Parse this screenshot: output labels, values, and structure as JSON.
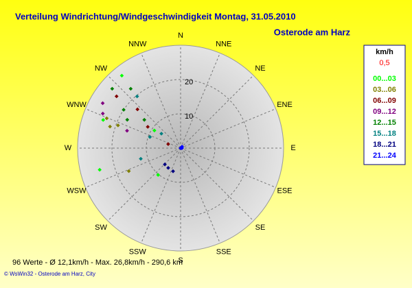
{
  "chart_data": {
    "type": "polar-scatter",
    "title": "Verteilung Windrichtung/Windgeschwindigkeit  Montag, 31.05.2010",
    "subtitle": "Osterode am Harz",
    "directions": [
      "N",
      "NNE",
      "NE",
      "ENE",
      "E",
      "ESE",
      "SE",
      "SSE",
      "S",
      "SSW",
      "SW",
      "WSW",
      "W",
      "WNW",
      "NW",
      "NNW"
    ],
    "rlim": [
      0,
      30
    ],
    "rticks": [
      10,
      20
    ],
    "grid": true,
    "legend_title": "km/h",
    "calm_label": "0,5",
    "calm_color": "#ff0000",
    "series": [
      {
        "name": "00...03",
        "color": "#00ff00",
        "x": [
          321,
          290,
          255,
          220,
          304
        ],
        "values": [
          27.2,
          24,
          24.4,
          10.2,
          9.2
        ]
      },
      {
        "name": "03...06",
        "color": "#808000",
        "x": [
          292,
          287,
          290,
          246
        ],
        "values": [
          23.2,
          21.5,
          19.4,
          16.5
        ]
      },
      {
        "name": "06...09",
        "color": "#800000",
        "x": [
          309,
          312,
          288,
          303
        ],
        "values": [
          24,
          16.9,
          3.8,
          11.4
        ]
      },
      {
        "name": "09...12",
        "color": "#800080",
        "x": [
          294,
          288,
          300
        ],
        "values": [
          24.8,
          16.4,
          26.2
        ]
      },
      {
        "name": "12...15",
        "color": "#008000",
        "x": [
          311,
          320,
          304,
          298,
          308
        ],
        "values": [
          26.4,
          22.6,
          20,
          17.6,
          13.4
        ]
      },
      {
        "name": "15...18",
        "color": "#008080",
        "x": [
          320,
          307,
          290,
          255
        ],
        "values": [
          19.7,
          7,
          9.5,
          12
        ]
      },
      {
        "name": "18...21",
        "color": "#000080",
        "x": [
          212,
          198,
          224
        ],
        "values": [
          6.8,
          7.1,
          6.6
        ]
      },
      {
        "name": "21...24",
        "color": "#0000ff",
        "x": [
          0,
          90,
          45
        ],
        "values": [
          0,
          0.4,
          0.6
        ]
      }
    ],
    "stats": "96 Werte   -   Ø 12,1km/h   -   Max. 26,8km/h   -   290,6 km",
    "footer": "© WsWin32  -  Osterode am Harz, City"
  }
}
